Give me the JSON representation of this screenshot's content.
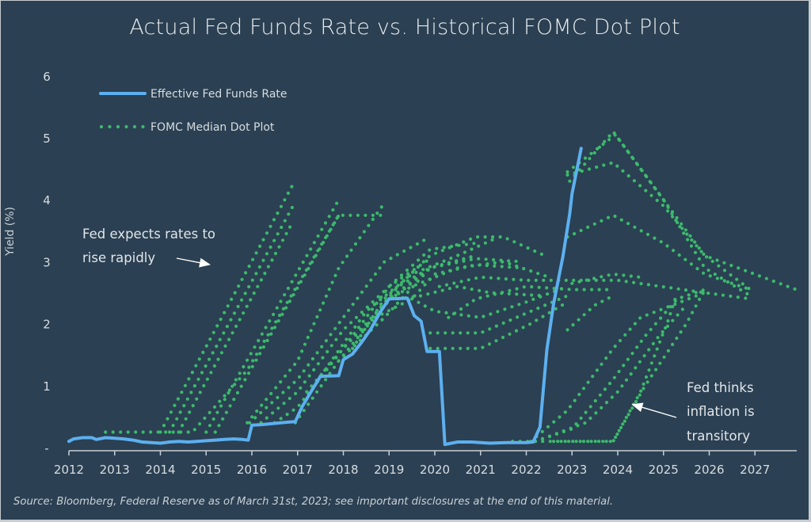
{
  "chart_data": {
    "type": "line",
    "title": "Actual Fed Funds Rate vs. Historical FOMC Dot Plot",
    "xlabel": "",
    "ylabel": "Yield (%)",
    "xlim": [
      2012,
      2027.9
    ],
    "ylim": [
      0,
      6
    ],
    "x_ticks": [
      "2012",
      "2013",
      "2014",
      "2015",
      "2016",
      "2017",
      "2018",
      "2019",
      "2020",
      "2021",
      "2022",
      "2023",
      "2024",
      "2025",
      "2026",
      "2027"
    ],
    "y_ticks": [
      "-",
      "1",
      "2",
      "3",
      "4",
      "5",
      "6"
    ],
    "grid": false,
    "legend_position": "top-left",
    "legend": [
      {
        "label": "Effective Fed Funds Rate",
        "style": "solid",
        "color": "#5cb0f0"
      },
      {
        "label": "FOMC Median Dot Plot",
        "style": "dotted",
        "color": "#3cba6c"
      }
    ],
    "annotations": [
      {
        "lines": [
          "Fed expects rates to",
          "rise rapidly"
        ],
        "arrow_to": [
          2015.1,
          2.95
        ]
      },
      {
        "lines": [
          "Fed thinks",
          "inflation is",
          "transitory"
        ],
        "arrow_to": [
          2024.3,
          0.7
        ]
      }
    ],
    "source": "Source: Bloomberg, Federal Reserve as of March 31st, 2023; see important disclosures at the end of this material.",
    "series": [
      {
        "name": "Effective Fed Funds Rate",
        "points": [
          [
            2012.0,
            0.1
          ],
          [
            2012.1,
            0.14
          ],
          [
            2012.3,
            0.16
          ],
          [
            2012.5,
            0.16
          ],
          [
            2012.6,
            0.13
          ],
          [
            2012.8,
            0.16
          ],
          [
            2013.0,
            0.15
          ],
          [
            2013.2,
            0.14
          ],
          [
            2013.4,
            0.12
          ],
          [
            2013.6,
            0.09
          ],
          [
            2013.8,
            0.08
          ],
          [
            2014.0,
            0.07
          ],
          [
            2014.2,
            0.09
          ],
          [
            2014.4,
            0.1
          ],
          [
            2014.6,
            0.09
          ],
          [
            2014.8,
            0.1
          ],
          [
            2015.0,
            0.11
          ],
          [
            2015.2,
            0.12
          ],
          [
            2015.4,
            0.13
          ],
          [
            2015.6,
            0.14
          ],
          [
            2015.8,
            0.13
          ],
          [
            2015.92,
            0.12
          ],
          [
            2016.0,
            0.36
          ],
          [
            2016.2,
            0.37
          ],
          [
            2016.5,
            0.39
          ],
          [
            2016.8,
            0.41
          ],
          [
            2016.95,
            0.42
          ],
          [
            2017.1,
            0.66
          ],
          [
            2017.3,
            0.91
          ],
          [
            2017.5,
            1.15
          ],
          [
            2017.9,
            1.16
          ],
          [
            2018.0,
            1.42
          ],
          [
            2018.2,
            1.51
          ],
          [
            2018.4,
            1.7
          ],
          [
            2018.6,
            1.91
          ],
          [
            2018.8,
            2.18
          ],
          [
            2019.0,
            2.4
          ],
          [
            2019.4,
            2.41
          ],
          [
            2019.55,
            2.13
          ],
          [
            2019.7,
            2.04
          ],
          [
            2019.83,
            1.55
          ],
          [
            2020.1,
            1.55
          ],
          [
            2020.22,
            0.05
          ],
          [
            2020.5,
            0.09
          ],
          [
            2020.8,
            0.09
          ],
          [
            2021.2,
            0.07
          ],
          [
            2021.6,
            0.08
          ],
          [
            2022.0,
            0.08
          ],
          [
            2022.15,
            0.09
          ],
          [
            2022.3,
            0.33
          ],
          [
            2022.45,
            1.58
          ],
          [
            2022.6,
            2.33
          ],
          [
            2022.8,
            3.08
          ],
          [
            2022.95,
            3.78
          ],
          [
            2023.0,
            4.1
          ],
          [
            2023.2,
            4.83
          ]
        ]
      },
      {
        "name": "FOMC Median Dot Plot",
        "projections": [
          [
            [
              2014.0,
              0.25
            ],
            [
              2016.9,
              4.25
            ]
          ],
          [
            [
              2014.2,
              0.25
            ],
            [
              2016.9,
              3.9
            ]
          ],
          [
            [
              2014.4,
              0.25
            ],
            [
              2016.9,
              3.65
            ]
          ],
          [
            [
              2015.0,
              0.25
            ],
            [
              2017.9,
              4.0
            ]
          ],
          [
            [
              2015.2,
              0.25
            ],
            [
              2017.9,
              3.75
            ]
          ],
          [
            [
              2012.8,
              0.25
            ],
            [
              2014.7,
              0.25
            ],
            [
              2015.9,
              1.25
            ],
            [
              2017.9,
              3.75
            ],
            [
              2018.9,
              3.75
            ]
          ],
          [
            [
              2015.9,
              0.4
            ],
            [
              2017.0,
              1.4
            ],
            [
              2017.9,
              2.9
            ],
            [
              2018.9,
              3.95
            ]
          ],
          [
            [
              2015.95,
              0.4
            ],
            [
              2017.0,
              1.1
            ],
            [
              2018.0,
              2.1
            ],
            [
              2018.9,
              3.0
            ],
            [
              2019.9,
              3.4
            ]
          ],
          [
            [
              2016.2,
              0.4
            ],
            [
              2017.0,
              0.9
            ],
            [
              2018.0,
              1.9
            ],
            [
              2019.0,
              2.6
            ],
            [
              2019.9,
              3.05
            ]
          ],
          [
            [
              2016.5,
              0.4
            ],
            [
              2017.0,
              0.65
            ],
            [
              2018.0,
              1.6
            ],
            [
              2019.0,
              2.4
            ],
            [
              2019.9,
              2.9
            ]
          ],
          [
            [
              2016.95,
              0.4
            ],
            [
              2017.9,
              1.4
            ],
            [
              2018.9,
              2.1
            ],
            [
              2019.9,
              2.9
            ],
            [
              2020.9,
              3.1
            ]
          ],
          [
            [
              2017.2,
              0.9
            ],
            [
              2018.0,
              1.6
            ],
            [
              2019.0,
              2.6
            ],
            [
              2019.9,
              3.2
            ],
            [
              2020.9,
              3.3
            ]
          ],
          [
            [
              2017.5,
              1.15
            ],
            [
              2018.5,
              2.2
            ],
            [
              2019.5,
              2.8
            ],
            [
              2020.5,
              3.1
            ],
            [
              2021.4,
              3.4
            ]
          ],
          [
            [
              2017.9,
              1.4
            ],
            [
              2018.9,
              2.3
            ],
            [
              2019.9,
              2.9
            ],
            [
              2020.9,
              3.1
            ]
          ],
          [
            [
              2018.2,
              1.6
            ],
            [
              2018.9,
              2.4
            ],
            [
              2019.9,
              3.1
            ],
            [
              2020.9,
              3.4
            ],
            [
              2021.5,
              3.4
            ],
            [
              2022.4,
              3.1
            ]
          ],
          [
            [
              2018.4,
              1.9
            ],
            [
              2019.2,
              2.6
            ],
            [
              2019.9,
              2.9
            ],
            [
              2020.9,
              3.05
            ],
            [
              2021.9,
              3.0
            ]
          ],
          [
            [
              2018.7,
              2.1
            ],
            [
              2019.5,
              2.4
            ],
            [
              2020.0,
              2.8
            ],
            [
              2020.9,
              2.95
            ],
            [
              2021.9,
              2.9
            ]
          ],
          [
            [
              2019.0,
              2.4
            ],
            [
              2019.5,
              2.6
            ],
            [
              2020.5,
              2.9
            ],
            [
              2021.5,
              3.0
            ],
            [
              2022.5,
              2.75
            ]
          ],
          [
            [
              2019.2,
              2.4
            ],
            [
              2019.7,
              2.45
            ],
            [
              2020.5,
              2.6
            ],
            [
              2021.2,
              2.5
            ],
            [
              2022.4,
              2.45
            ]
          ],
          [
            [
              2019.5,
              2.4
            ],
            [
              2020.0,
              2.2
            ],
            [
              2021.0,
              2.1
            ],
            [
              2022.0,
              2.35
            ],
            [
              2022.9,
              2.6
            ]
          ],
          [
            [
              2019.9,
              1.85
            ],
            [
              2021.0,
              1.85
            ],
            [
              2022.1,
              2.2
            ],
            [
              2022.9,
              2.45
            ]
          ],
          [
            [
              2019.9,
              1.6
            ],
            [
              2021.0,
              1.6
            ],
            [
              2022.1,
              2.0
            ],
            [
              2022.9,
              2.35
            ]
          ],
          [
            [
              2020.3,
              2.1
            ],
            [
              2020.9,
              2.4
            ],
            [
              2022.0,
              2.6
            ],
            [
              2023.0,
              2.55
            ],
            [
              2023.9,
              2.55
            ]
          ],
          [
            [
              2020.1,
              2.6
            ],
            [
              2021.0,
              2.75
            ],
            [
              2022.0,
              2.7
            ],
            [
              2023.0,
              2.7
            ],
            [
              2024.0,
              2.7
            ],
            [
              2025.9,
              2.5
            ],
            [
              2026.9,
              2.4
            ]
          ],
          [
            [
              2023.0,
              2.65
            ],
            [
              2023.9,
              2.8
            ],
            [
              2024.5,
              2.75
            ]
          ],
          [
            [
              2022.9,
              1.9
            ],
            [
              2023.5,
              2.3
            ],
            [
              2023.9,
              2.45
            ]
          ],
          [
            [
              2021.7,
              0.1
            ],
            [
              2022.9,
              0.1
            ],
            [
              2023.9,
              0.1
            ],
            [
              2024.5,
              0.9
            ],
            [
              2025.1,
              2.05
            ],
            [
              2025.3,
              2.5
            ]
          ],
          [
            [
              2022.1,
              0.1
            ],
            [
              2022.9,
              0.6
            ],
            [
              2023.9,
              1.6
            ],
            [
              2024.5,
              2.1
            ],
            [
              2025.9,
              2.5
            ]
          ],
          [
            [
              2022.2,
              0.1
            ],
            [
              2023.0,
              0.3
            ],
            [
              2023.9,
              1.1
            ],
            [
              2024.6,
              1.8
            ],
            [
              2025.3,
              2.4
            ],
            [
              2025.9,
              2.55
            ]
          ],
          [
            [
              2022.2,
              0.1
            ],
            [
              2023.3,
              0.4
            ],
            [
              2024.0,
              0.9
            ],
            [
              2024.9,
              1.8
            ],
            [
              2025.5,
              2.3
            ]
          ],
          [
            [
              2022.6,
              0.1
            ],
            [
              2023.9,
              0.1
            ],
            [
              2024.6,
              1.0
            ],
            [
              2025.5,
              2.0
            ],
            [
              2025.9,
              2.55
            ]
          ],
          [
            [
              2022.9,
              3.4
            ],
            [
              2023.9,
              3.75
            ],
            [
              2025.0,
              3.3
            ],
            [
              2025.9,
              2.8
            ],
            [
              2026.9,
              2.55
            ]
          ],
          [
            [
              2022.9,
              4.4
            ],
            [
              2023.9,
              4.6
            ],
            [
              2025.0,
              3.9
            ],
            [
              2025.9,
              3.1
            ],
            [
              2026.9,
              2.55
            ]
          ],
          [
            [
              2022.95,
              4.3
            ],
            [
              2023.9,
              5.1
            ],
            [
              2024.9,
              4.1
            ],
            [
              2025.9,
              3.1
            ],
            [
              2027.9,
              2.55
            ]
          ],
          [
            [
              2022.9,
              4.45
            ],
            [
              2023.95,
              5.05
            ],
            [
              2025.0,
              4.0
            ],
            [
              2025.9,
              2.9
            ],
            [
              2026.9,
              2.45
            ]
          ]
        ]
      }
    ]
  }
}
